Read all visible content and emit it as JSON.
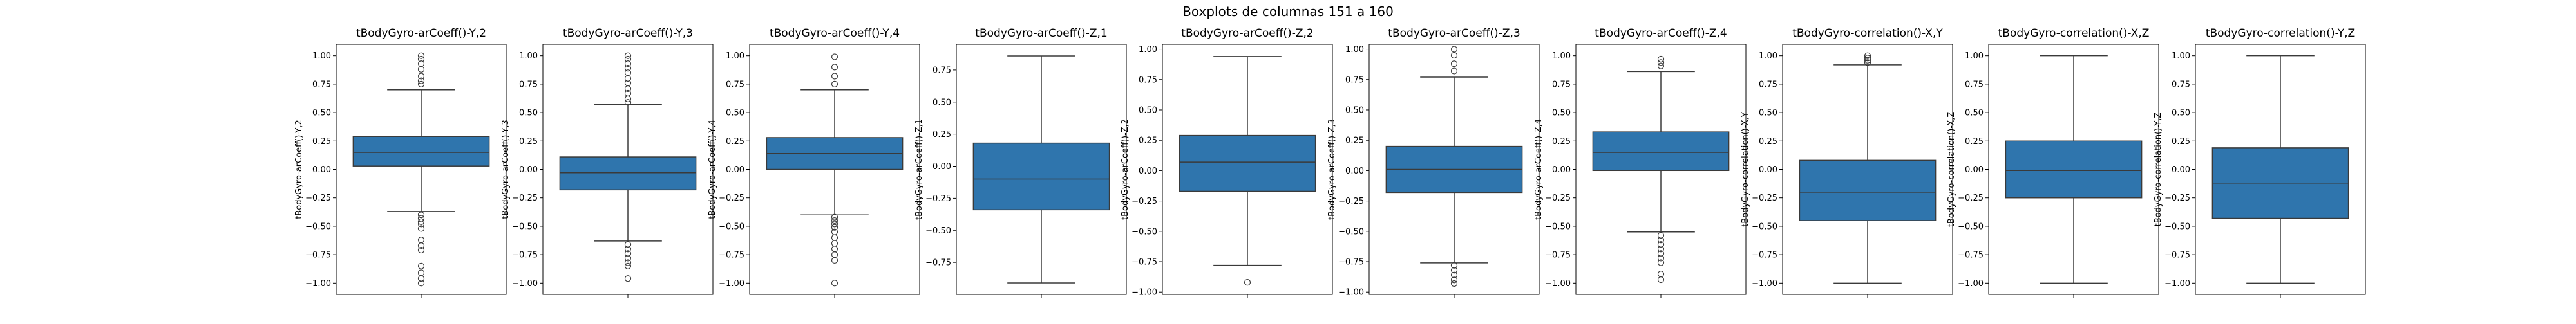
{
  "figure": {
    "suptitle": "Boxplots de columnas 151 a 160",
    "box_color": "#2f75ad",
    "line_color": "#3a3a3a"
  },
  "chart_data": [
    {
      "type": "boxplot",
      "title": "tBodyGyro-arCoeff()-Y,2",
      "ylabel": "tBodyGyro-arCoeff()-Y,2",
      "ylim": [
        -1.1,
        1.1
      ],
      "ticks": [
        1.0,
        0.75,
        0.5,
        0.25,
        0.0,
        -0.25,
        -0.5,
        -0.75,
        -1.0
      ],
      "tick_labels": [
        "1.00",
        "0.75",
        "0.50",
        "0.25",
        "0.00",
        "−0.25",
        "−0.50",
        "−0.75",
        "−1.00"
      ],
      "box": {
        "q1": 0.03,
        "median": 0.15,
        "q3": 0.29,
        "whisker_low": -0.37,
        "whisker_high": 0.7
      },
      "outliers": [
        1.0,
        0.97,
        0.93,
        0.88,
        0.82,
        0.78,
        0.75,
        -0.4,
        -0.43,
        -0.46,
        -0.48,
        -0.52,
        -0.62,
        -0.67,
        -0.71,
        -0.85,
        -0.91,
        -0.96,
        -1.0
      ]
    },
    {
      "type": "boxplot",
      "title": "tBodyGyro-arCoeff()-Y,3",
      "ylabel": "tBodyGyro-arCoeff()-Y,3",
      "ylim": [
        -1.1,
        1.1
      ],
      "ticks": [
        1.0,
        0.75,
        0.5,
        0.25,
        0.0,
        -0.25,
        -0.5,
        -0.75,
        -1.0
      ],
      "tick_labels": [
        "1.00",
        "0.75",
        "0.50",
        "0.25",
        "0.00",
        "−0.25",
        "−0.50",
        "−0.75",
        "−1.00"
      ],
      "box": {
        "q1": -0.18,
        "median": -0.03,
        "q3": 0.11,
        "whisker_low": -0.63,
        "whisker_high": 0.57
      },
      "outliers": [
        1.0,
        0.97,
        0.93,
        0.89,
        0.85,
        0.8,
        0.76,
        0.71,
        0.67,
        0.62,
        0.59,
        -0.66,
        -0.7,
        -0.74,
        -0.78,
        -0.82,
        -0.85,
        -0.96
      ]
    },
    {
      "type": "boxplot",
      "title": "tBodyGyro-arCoeff()-Y,4",
      "ylabel": "tBodyGyro-arCoeff()-Y,4",
      "ylim": [
        -1.1,
        1.1
      ],
      "ticks": [
        1.0,
        0.75,
        0.5,
        0.25,
        0.0,
        -0.25,
        -0.5,
        -0.75,
        -1.0
      ],
      "tick_labels": [
        "1.00",
        "0.75",
        "0.50",
        "0.25",
        "0.00",
        "−0.25",
        "−0.50",
        "−0.75",
        "−1.00"
      ],
      "box": {
        "q1": 0.0,
        "median": 0.14,
        "q3": 0.28,
        "whisker_low": -0.4,
        "whisker_high": 0.7
      },
      "outliers": [
        0.99,
        0.9,
        0.82,
        0.75,
        -0.42,
        -0.45,
        -0.48,
        -0.51,
        -0.55,
        -0.6,
        -0.65,
        -0.7,
        -0.75,
        -0.8,
        -1.0
      ]
    },
    {
      "type": "boxplot",
      "title": "tBodyGyro-arCoeff()-Z,1",
      "ylabel": "tBodyGyro-arCoeff()-Z,1",
      "ylim": [
        -1.0,
        0.95
      ],
      "ticks": [
        0.75,
        0.5,
        0.25,
        0.0,
        -0.25,
        -0.5,
        -0.75
      ],
      "tick_labels": [
        "0.75",
        "0.50",
        "0.25",
        "0.00",
        "−0.25",
        "−0.50",
        "−0.75"
      ],
      "box": {
        "q1": -0.34,
        "median": -0.1,
        "q3": 0.18,
        "whisker_low": -0.91,
        "whisker_high": 0.86
      },
      "outliers": []
    },
    {
      "type": "boxplot",
      "title": "tBodyGyro-arCoeff()-Z,2",
      "ylabel": "tBodyGyro-arCoeff()-Z,2",
      "ylim": [
        -1.02,
        1.04
      ],
      "ticks": [
        1.0,
        0.75,
        0.5,
        0.25,
        0.0,
        -0.25,
        -0.5,
        -0.75,
        -1.0
      ],
      "tick_labels": [
        "1.00",
        "0.75",
        "0.50",
        "0.25",
        "0.00",
        "−0.25",
        "−0.50",
        "−0.75",
        "−1.00"
      ],
      "box": {
        "q1": -0.17,
        "median": 0.07,
        "q3": 0.29,
        "whisker_low": -0.78,
        "whisker_high": 0.94
      },
      "outliers": [
        -0.92
      ]
    },
    {
      "type": "boxplot",
      "title": "tBodyGyro-arCoeff()-Z,3",
      "ylabel": "tBodyGyro-arCoeff()-Z,3",
      "ylim": [
        -1.02,
        1.04
      ],
      "ticks": [
        1.0,
        0.75,
        0.5,
        0.25,
        0.0,
        -0.25,
        -0.5,
        -0.75,
        -1.0
      ],
      "tick_labels": [
        "1.00",
        "0.75",
        "0.50",
        "0.25",
        "0.00",
        "−0.25",
        "−0.50",
        "−0.75",
        "−1.00"
      ],
      "box": {
        "q1": -0.18,
        "median": 0.01,
        "q3": 0.2,
        "whisker_low": -0.76,
        "whisker_high": 0.77
      },
      "outliers": [
        1.0,
        0.95,
        0.88,
        0.82,
        -0.78,
        -0.82,
        -0.86,
        -0.9,
        -0.93
      ]
    },
    {
      "type": "boxplot",
      "title": "tBodyGyro-arCoeff()-Z,4",
      "ylabel": "tBodyGyro-arCoeff()-Z,4",
      "ylim": [
        -1.1,
        1.1
      ],
      "ticks": [
        1.0,
        0.75,
        0.5,
        0.25,
        0.0,
        -0.25,
        -0.5,
        -0.75,
        -1.0
      ],
      "tick_labels": [
        "1.00",
        "0.75",
        "0.50",
        "0.25",
        "0.00",
        "−0.25",
        "−0.50",
        "−0.75",
        "−1.00"
      ],
      "box": {
        "q1": -0.01,
        "median": 0.15,
        "q3": 0.33,
        "whisker_low": -0.55,
        "whisker_high": 0.86
      },
      "outliers": [
        0.97,
        0.94,
        0.91,
        -0.58,
        -0.62,
        -0.66,
        -0.7,
        -0.74,
        -0.78,
        -0.82,
        -0.92,
        -0.97
      ]
    },
    {
      "type": "boxplot",
      "title": "tBodyGyro-correlation()-X,Y",
      "ylabel": "tBodyGyro-correlation()-X,Y",
      "ylim": [
        -1.1,
        1.1
      ],
      "ticks": [
        1.0,
        0.75,
        0.5,
        0.25,
        0.0,
        -0.25,
        -0.5,
        -0.75,
        -1.0
      ],
      "tick_labels": [
        "1.00",
        "0.75",
        "0.50",
        "0.25",
        "0.00",
        "−0.25",
        "−0.50",
        "−0.75",
        "−1.00"
      ],
      "box": {
        "q1": -0.45,
        "median": -0.2,
        "q3": 0.08,
        "whisker_low": -1.0,
        "whisker_high": 0.92
      },
      "outliers": [
        1.0,
        0.98,
        0.96,
        0.94
      ]
    },
    {
      "type": "boxplot",
      "title": "tBodyGyro-correlation()-X,Z",
      "ylabel": "tBodyGyro-correlation()-X,Z",
      "ylim": [
        -1.1,
        1.1
      ],
      "ticks": [
        1.0,
        0.75,
        0.5,
        0.25,
        0.0,
        -0.25,
        -0.5,
        -0.75,
        -1.0
      ],
      "tick_labels": [
        "1.00",
        "0.75",
        "0.50",
        "0.25",
        "0.00",
        "−0.25",
        "−0.50",
        "−0.75",
        "−1.00"
      ],
      "box": {
        "q1": -0.25,
        "median": -0.01,
        "q3": 0.25,
        "whisker_low": -1.0,
        "whisker_high": 1.0
      },
      "outliers": []
    },
    {
      "type": "boxplot",
      "title": "tBodyGyro-correlation()-Y,Z",
      "ylabel": "tBodyGyro-correlation()-Y,Z",
      "ylim": [
        -1.1,
        1.1
      ],
      "ticks": [
        1.0,
        0.75,
        0.5,
        0.25,
        0.0,
        -0.25,
        -0.5,
        -0.75,
        -1.0
      ],
      "tick_labels": [
        "1.00",
        "0.75",
        "0.50",
        "0.25",
        "0.00",
        "−0.25",
        "−0.50",
        "−0.75",
        "−1.00"
      ],
      "box": {
        "q1": -0.43,
        "median": -0.12,
        "q3": 0.19,
        "whisker_low": -1.0,
        "whisker_high": 1.0
      },
      "outliers": []
    }
  ]
}
